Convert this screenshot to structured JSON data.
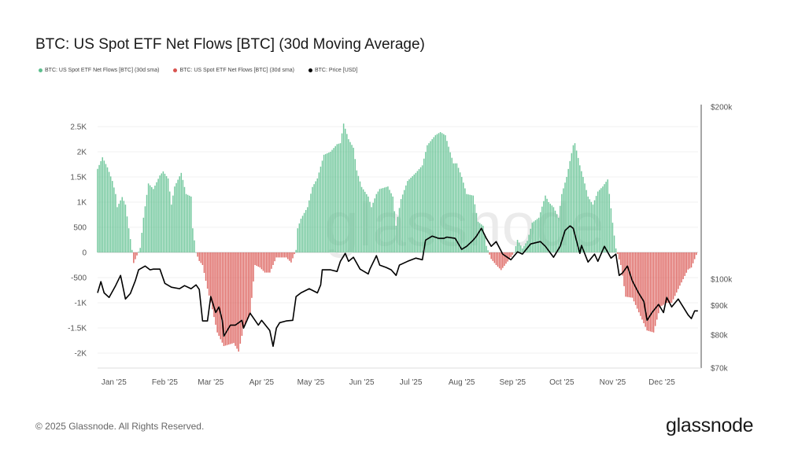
{
  "title": "BTC: US Spot ETF Net Flows [BTC] (30d Moving Average)",
  "legend": [
    {
      "label": "BTC: US Spot ETF Net Flows [BTC] (30d sma)",
      "color": "#5dbf8e"
    },
    {
      "label": "BTC: US Spot ETF Net Flows [BTC] (30d sma)",
      "color": "#d9534f"
    },
    {
      "label": "BTC: Price [USD]",
      "color": "#000000"
    }
  ],
  "watermark": "glassnode",
  "footer": {
    "copyright": "© 2025 Glassnode. All Rights Reserved.",
    "logo": "glassnode"
  },
  "chart_data": {
    "type": "bar+line",
    "title": "BTC: US Spot ETF Net Flows [BTC] (30d Moving Average)",
    "x_range": [
      "2024-12-22",
      "2025-12-25"
    ],
    "x_ticks": [
      {
        "date": "2025-01-01",
        "label": "Jan '25"
      },
      {
        "date": "2025-02-01",
        "label": "Feb '25"
      },
      {
        "date": "2025-03-01",
        "label": "Mar '25"
      },
      {
        "date": "2025-04-01",
        "label": "Apr '25"
      },
      {
        "date": "2025-05-01",
        "label": "May '25"
      },
      {
        "date": "2025-06-01",
        "label": "Jun '25"
      },
      {
        "date": "2025-07-01",
        "label": "Jul '25"
      },
      {
        "date": "2025-08-01",
        "label": "Aug '25"
      },
      {
        "date": "2025-09-01",
        "label": "Sep '25"
      },
      {
        "date": "2025-10-01",
        "label": "Oct '25"
      },
      {
        "date": "2025-11-01",
        "label": "Nov '25"
      },
      {
        "date": "2025-12-01",
        "label": "Dec '25"
      }
    ],
    "y_left": {
      "range": [
        -2297,
        2890
      ],
      "ticks": [
        {
          "value": 2500,
          "label": "2.5K"
        },
        {
          "value": 2000,
          "label": "2K"
        },
        {
          "value": 1500,
          "label": "1.5K"
        },
        {
          "value": 1000,
          "label": "1K"
        },
        {
          "value": 500,
          "label": "500"
        },
        {
          "value": 0,
          "label": "0"
        },
        {
          "value": -500,
          "label": "-500"
        },
        {
          "value": -1000,
          "label": "-1K"
        },
        {
          "value": -1500,
          "label": "-1.5K"
        },
        {
          "value": -2000,
          "label": "-2K"
        }
      ]
    },
    "y_right": {
      "scale": "log",
      "range": [
        70000,
        200000
      ],
      "ticks": [
        {
          "value": 200000,
          "label": "$200k"
        },
        {
          "value": 100000,
          "label": "$100k"
        },
        {
          "value": 90000,
          "label": "$90k"
        },
        {
          "value": 80000,
          "label": "$80k"
        },
        {
          "value": 70000,
          "label": "$70k"
        }
      ]
    },
    "grid": true,
    "colors": {
      "positive": "#5dbf8e",
      "negative": "#d9534f",
      "price": "#000000"
    },
    "flows": [
      [
        "2024-12-22",
        1660
      ],
      [
        "2024-12-25",
        1890
      ],
      [
        "2024-12-28",
        1690
      ],
      [
        "2024-12-31",
        1420
      ],
      [
        "2025-01-02",
        1160
      ],
      [
        "2025-01-03",
        900
      ],
      [
        "2025-01-06",
        1100
      ],
      [
        "2025-01-08",
        950
      ],
      [
        "2025-01-10",
        480
      ],
      [
        "2025-01-12",
        50
      ],
      [
        "2025-01-13",
        -210
      ],
      [
        "2025-01-15",
        -60
      ],
      [
        "2025-01-17",
        90
      ],
      [
        "2025-01-19",
        690
      ],
      [
        "2025-01-22",
        1370
      ],
      [
        "2025-01-25",
        1260
      ],
      [
        "2025-01-29",
        1530
      ],
      [
        "2025-01-31",
        1610
      ],
      [
        "2025-02-03",
        1470
      ],
      [
        "2025-02-05",
        950
      ],
      [
        "2025-02-07",
        1310
      ],
      [
        "2025-02-11",
        1580
      ],
      [
        "2025-02-14",
        1160
      ],
      [
        "2025-02-17",
        1110
      ],
      [
        "2025-02-18",
        480
      ],
      [
        "2025-02-20",
        0
      ],
      [
        "2025-02-22",
        -170
      ],
      [
        "2025-02-24",
        -250
      ],
      [
        "2025-02-27",
        -720
      ],
      [
        "2025-03-02",
        -1130
      ],
      [
        "2025-03-05",
        -1590
      ],
      [
        "2025-03-09",
        -1860
      ],
      [
        "2025-03-15",
        -1800
      ],
      [
        "2025-03-18",
        -1970
      ],
      [
        "2025-03-21",
        -1500
      ],
      [
        "2025-03-25",
        -1230
      ],
      [
        "2025-03-28",
        -250
      ],
      [
        "2025-03-31",
        -300
      ],
      [
        "2025-04-03",
        -400
      ],
      [
        "2025-04-06",
        -400
      ],
      [
        "2025-04-10",
        -100
      ],
      [
        "2025-04-16",
        -100
      ],
      [
        "2025-04-19",
        -200
      ],
      [
        "2025-04-22",
        50
      ],
      [
        "2025-04-23",
        480
      ],
      [
        "2025-04-25",
        670
      ],
      [
        "2025-04-29",
        900
      ],
      [
        "2025-05-02",
        1300
      ],
      [
        "2025-05-05",
        1470
      ],
      [
        "2025-05-09",
        1940
      ],
      [
        "2025-05-13",
        2000
      ],
      [
        "2025-05-17",
        2150
      ],
      [
        "2025-05-19",
        2170
      ],
      [
        "2025-05-21",
        2560
      ],
      [
        "2025-05-24",
        2250
      ],
      [
        "2025-05-27",
        2080
      ],
      [
        "2025-05-29",
        1630
      ],
      [
        "2025-06-01",
        1300
      ],
      [
        "2025-06-05",
        1110
      ],
      [
        "2025-06-07",
        900
      ],
      [
        "2025-06-10",
        1160
      ],
      [
        "2025-06-12",
        1260
      ],
      [
        "2025-06-17",
        1310
      ],
      [
        "2025-06-20",
        1110
      ],
      [
        "2025-06-22",
        530
      ],
      [
        "2025-06-25",
        1060
      ],
      [
        "2025-06-29",
        1420
      ],
      [
        "2025-07-04",
        1580
      ],
      [
        "2025-07-08",
        1730
      ],
      [
        "2025-07-11",
        2130
      ],
      [
        "2025-07-16",
        2330
      ],
      [
        "2025-07-19",
        2390
      ],
      [
        "2025-07-22",
        2330
      ],
      [
        "2025-07-24",
        2100
      ],
      [
        "2025-07-27",
        1770
      ],
      [
        "2025-07-29",
        1770
      ],
      [
        "2025-08-01",
        1500
      ],
      [
        "2025-08-04",
        1160
      ],
      [
        "2025-08-08",
        1130
      ],
      [
        "2025-08-11",
        610
      ],
      [
        "2025-08-14",
        530
      ],
      [
        "2025-08-16",
        130
      ],
      [
        "2025-08-19",
        -130
      ],
      [
        "2025-08-22",
        -250
      ],
      [
        "2025-08-25",
        -350
      ],
      [
        "2025-08-30",
        -140
      ],
      [
        "2025-09-02",
        0
      ],
      [
        "2025-09-04",
        250
      ],
      [
        "2025-09-07",
        80
      ],
      [
        "2025-09-10",
        230
      ],
      [
        "2025-09-13",
        590
      ],
      [
        "2025-09-17",
        690
      ],
      [
        "2025-09-21",
        1130
      ],
      [
        "2025-09-23",
        1000
      ],
      [
        "2025-09-26",
        900
      ],
      [
        "2025-09-29",
        690
      ],
      [
        "2025-10-01",
        1160
      ],
      [
        "2025-10-04",
        1500
      ],
      [
        "2025-10-08",
        2130
      ],
      [
        "2025-10-09",
        2170
      ],
      [
        "2025-10-12",
        1730
      ],
      [
        "2025-10-14",
        1500
      ],
      [
        "2025-10-17",
        1110
      ],
      [
        "2025-10-20",
        950
      ],
      [
        "2025-10-23",
        1210
      ],
      [
        "2025-10-26",
        1310
      ],
      [
        "2025-10-29",
        1450
      ],
      [
        "2025-11-01",
        590
      ],
      [
        "2025-11-03",
        80
      ],
      [
        "2025-11-06",
        -250
      ],
      [
        "2025-11-09",
        -880
      ],
      [
        "2025-11-13",
        -900
      ],
      [
        "2025-11-17",
        -1190
      ],
      [
        "2025-11-22",
        -1550
      ],
      [
        "2025-11-26",
        -1590
      ],
      [
        "2025-11-30",
        -1080
      ],
      [
        "2025-12-04",
        -1000
      ],
      [
        "2025-12-07",
        -1000
      ],
      [
        "2025-12-12",
        -660
      ],
      [
        "2025-12-17",
        -340
      ],
      [
        "2025-12-19",
        -300
      ],
      [
        "2025-12-22",
        -50
      ]
    ],
    "price": [
      [
        "2024-12-22",
        94700
      ],
      [
        "2024-12-24",
        99100
      ],
      [
        "2024-12-26",
        94700
      ],
      [
        "2024-12-29",
        93000
      ],
      [
        "2025-01-02",
        97500
      ],
      [
        "2025-01-05",
        101600
      ],
      [
        "2025-01-08",
        92400
      ],
      [
        "2025-01-11",
        94500
      ],
      [
        "2025-01-14",
        99400
      ],
      [
        "2025-01-16",
        103900
      ],
      [
        "2025-01-20",
        105500
      ],
      [
        "2025-01-23",
        103900
      ],
      [
        "2025-01-25",
        104200
      ],
      [
        "2025-01-29",
        104200
      ],
      [
        "2025-02-01",
        98400
      ],
      [
        "2025-02-05",
        96900
      ],
      [
        "2025-02-10",
        96300
      ],
      [
        "2025-02-13",
        97500
      ],
      [
        "2025-02-17",
        96300
      ],
      [
        "2025-02-20",
        97800
      ],
      [
        "2025-02-22",
        96000
      ],
      [
        "2025-02-24",
        84600
      ],
      [
        "2025-02-27",
        84600
      ],
      [
        "2025-03-01",
        93300
      ],
      [
        "2025-03-04",
        87500
      ],
      [
        "2025-03-06",
        89500
      ],
      [
        "2025-03-08",
        84800
      ],
      [
        "2025-03-09",
        79600
      ],
      [
        "2025-03-13",
        83200
      ],
      [
        "2025-03-16",
        83200
      ],
      [
        "2025-03-20",
        84800
      ],
      [
        "2025-03-21",
        82200
      ],
      [
        "2025-03-25",
        87300
      ],
      [
        "2025-03-30",
        83200
      ],
      [
        "2025-04-01",
        84800
      ],
      [
        "2025-04-06",
        81400
      ],
      [
        "2025-04-08",
        76400
      ],
      [
        "2025-04-10",
        82200
      ],
      [
        "2025-04-12",
        84000
      ],
      [
        "2025-04-16",
        84600
      ],
      [
        "2025-04-20",
        84800
      ],
      [
        "2025-04-22",
        93300
      ],
      [
        "2025-04-25",
        94700
      ],
      [
        "2025-04-30",
        96300
      ],
      [
        "2025-05-05",
        94700
      ],
      [
        "2025-05-07",
        97800
      ],
      [
        "2025-05-08",
        103900
      ],
      [
        "2025-05-13",
        103900
      ],
      [
        "2025-05-17",
        103200
      ],
      [
        "2025-05-19",
        107500
      ],
      [
        "2025-05-22",
        111000
      ],
      [
        "2025-05-24",
        107500
      ],
      [
        "2025-05-27",
        109300
      ],
      [
        "2025-05-31",
        104200
      ],
      [
        "2025-06-05",
        102200
      ],
      [
        "2025-06-06",
        104200
      ],
      [
        "2025-06-10",
        110000
      ],
      [
        "2025-06-12",
        105900
      ],
      [
        "2025-06-16",
        104900
      ],
      [
        "2025-06-19",
        103900
      ],
      [
        "2025-06-22",
        101600
      ],
      [
        "2025-06-24",
        105900
      ],
      [
        "2025-06-29",
        107500
      ],
      [
        "2025-07-04",
        108900
      ],
      [
        "2025-07-08",
        108200
      ],
      [
        "2025-07-10",
        117100
      ],
      [
        "2025-07-14",
        119000
      ],
      [
        "2025-07-18",
        117900
      ],
      [
        "2025-07-21",
        117900
      ],
      [
        "2025-07-23",
        118500
      ],
      [
        "2025-07-28",
        117900
      ],
      [
        "2025-08-01",
        112800
      ],
      [
        "2025-08-04",
        114200
      ],
      [
        "2025-08-08",
        117100
      ],
      [
        "2025-08-10",
        119000
      ],
      [
        "2025-08-13",
        122800
      ],
      [
        "2025-08-16",
        117900
      ],
      [
        "2025-08-19",
        114200
      ],
      [
        "2025-08-22",
        116400
      ],
      [
        "2025-08-26",
        110700
      ],
      [
        "2025-08-31",
        108200
      ],
      [
        "2025-09-04",
        111700
      ],
      [
        "2025-09-07",
        110700
      ],
      [
        "2025-09-12",
        115300
      ],
      [
        "2025-09-18",
        116400
      ],
      [
        "2025-09-21",
        114200
      ],
      [
        "2025-09-26",
        109300
      ],
      [
        "2025-09-30",
        114200
      ],
      [
        "2025-10-03",
        121700
      ],
      [
        "2025-10-06",
        124000
      ],
      [
        "2025-10-08",
        122800
      ],
      [
        "2025-10-12",
        111000
      ],
      [
        "2025-10-13",
        114600
      ],
      [
        "2025-10-17",
        107200
      ],
      [
        "2025-10-21",
        110700
      ],
      [
        "2025-10-23",
        107500
      ],
      [
        "2025-10-27",
        114200
      ],
      [
        "2025-10-31",
        108900
      ],
      [
        "2025-11-03",
        110700
      ],
      [
        "2025-11-05",
        101600
      ],
      [
        "2025-11-07",
        102600
      ],
      [
        "2025-11-10",
        105500
      ],
      [
        "2025-11-13",
        99400
      ],
      [
        "2025-11-17",
        94500
      ],
      [
        "2025-11-20",
        91500
      ],
      [
        "2025-11-22",
        84800
      ],
      [
        "2025-11-25",
        87500
      ],
      [
        "2025-11-29",
        90400
      ],
      [
        "2025-12-02",
        87500
      ],
      [
        "2025-12-04",
        93000
      ],
      [
        "2025-12-07",
        89500
      ],
      [
        "2025-12-11",
        92400
      ],
      [
        "2025-12-14",
        89500
      ],
      [
        "2025-12-17",
        86700
      ],
      [
        "2025-12-19",
        85400
      ],
      [
        "2025-12-21",
        88100
      ],
      [
        "2025-12-23",
        88100
      ]
    ]
  }
}
